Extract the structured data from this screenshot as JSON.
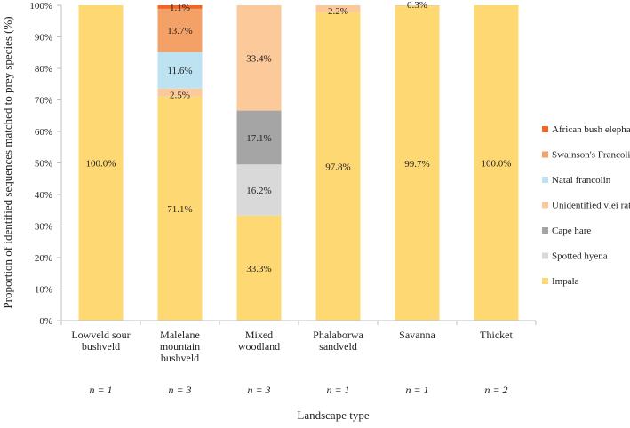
{
  "chart_data": {
    "type": "bar",
    "stacked": true,
    "ylabel": "Proportion of identified sequences matched to prey species (%)",
    "xlabel": "Landscape type",
    "ylim": [
      0,
      100
    ],
    "yticks": [
      0,
      10,
      20,
      30,
      40,
      50,
      60,
      70,
      80,
      90,
      100
    ],
    "ytick_labels": [
      "0%",
      "10%",
      "20%",
      "30%",
      "40%",
      "50%",
      "60%",
      "70%",
      "80%",
      "90%",
      "100%"
    ],
    "categories": [
      [
        "Lowveld sour",
        "bushveld"
      ],
      [
        "Malelane",
        "mountain",
        "bushveld"
      ],
      [
        "Mixed",
        "woodland"
      ],
      [
        "Phalaborwa",
        "sandveld"
      ],
      [
        "Savanna"
      ],
      [
        "Thicket"
      ]
    ],
    "sample_sizes": [
      "n = 1",
      "n = 3",
      "n = 3",
      "n = 1",
      "n = 1",
      "n = 2"
    ],
    "series": [
      {
        "name": "Impala",
        "color": "#fdd873",
        "values": [
          100.0,
          71.1,
          33.3,
          97.8,
          99.7,
          100.0
        ],
        "labels": [
          "100.0%",
          "71.1%",
          "33.3%",
          "97.8%",
          "99.7%",
          "100.0%"
        ]
      },
      {
        "name": "Spotted hyena",
        "color": "#d9d9d9",
        "values": [
          0,
          0,
          16.2,
          0,
          0,
          0
        ],
        "labels": [
          "",
          "",
          "16.2%",
          "",
          "",
          ""
        ]
      },
      {
        "name": "Cape hare",
        "color": "#a5a5a5",
        "values": [
          0,
          0,
          17.1,
          0,
          0,
          0
        ],
        "labels": [
          "",
          "",
          "17.1%",
          "",
          "",
          ""
        ]
      },
      {
        "name": "Unidentified vlei rat sp.",
        "color": "#fcc99b",
        "values": [
          0,
          2.5,
          33.4,
          2.2,
          0.3,
          0
        ],
        "labels": [
          "",
          "2.5%",
          "33.4%",
          "2.2%",
          "0.3%",
          ""
        ]
      },
      {
        "name": "Natal francolin",
        "color": "#bde3f2",
        "values": [
          0,
          11.6,
          0,
          0,
          0,
          0
        ],
        "labels": [
          "",
          "11.6%",
          "",
          "",
          "",
          ""
        ]
      },
      {
        "name": "Swainson's Francolin",
        "color": "#f4a168",
        "values": [
          0,
          13.7,
          0,
          0,
          0,
          0
        ],
        "labels": [
          "",
          "13.7%",
          "",
          "",
          "",
          ""
        ]
      },
      {
        "name": "African bush elephant",
        "color": "#f26522",
        "values": [
          0,
          1.1,
          0,
          0,
          0,
          0
        ],
        "labels": [
          "",
          "1.1%",
          "",
          "",
          "",
          ""
        ]
      }
    ],
    "legend_order": [
      "African bush elephant",
      "Swainson's Francolin",
      "Natal francolin",
      "Unidentified vlei rat sp.",
      "Cape hare",
      "Spotted hyena",
      "Impala"
    ],
    "axis_color": "#bfbfbf",
    "legend_position": "right"
  }
}
